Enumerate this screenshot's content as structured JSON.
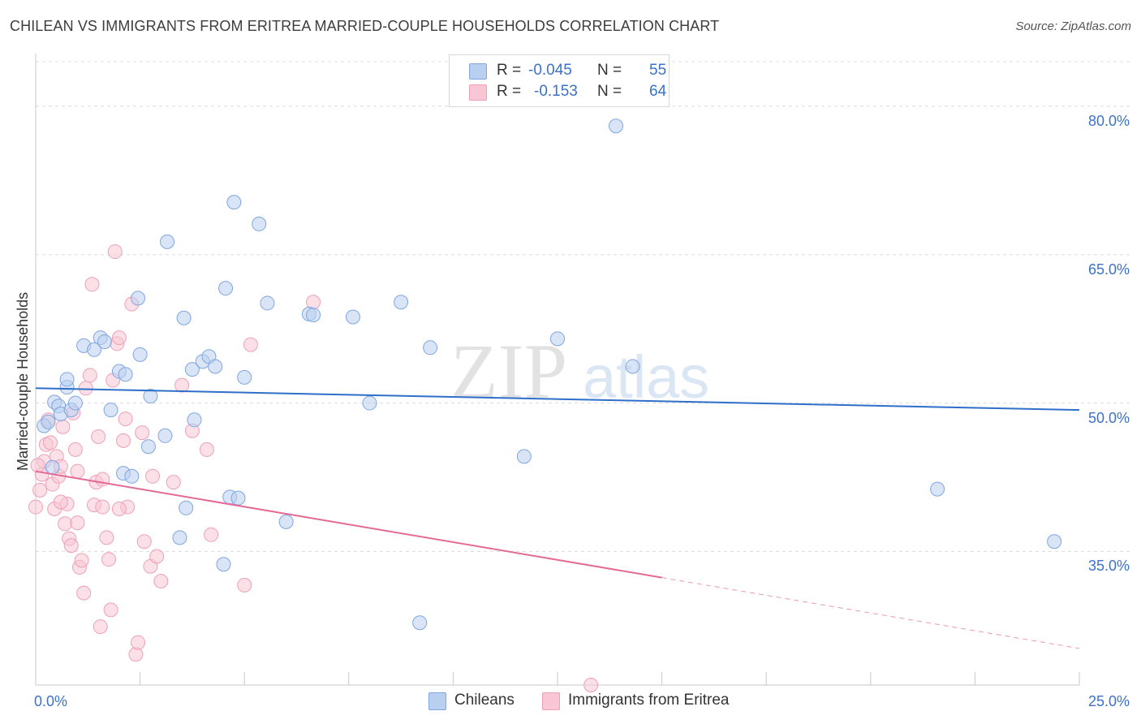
{
  "title": "CHILEAN VS IMMIGRANTS FROM ERITREA MARRIED-COUPLE HOUSEHOLDS CORRELATION CHART",
  "source": "Source: ZipAtlas.com",
  "legend_top": {
    "rows": [
      {
        "r_label": "R =",
        "r_value": "-0.045",
        "n_label": "N =",
        "n_value": "55"
      },
      {
        "r_label": "R =",
        "r_value": "-0.153",
        "n_label": "N =",
        "n_value": "64"
      }
    ]
  },
  "colors": {
    "series1_fill": "#b9cff0",
    "series1_stroke": "#7fa6e0",
    "series1_line": "#2e6fc9",
    "series2_fill": "#f8c6d4",
    "series2_stroke": "#eea0b8",
    "series2_line": "#e46a96",
    "axis_text": "#3b72c8"
  },
  "chart_data": {
    "type": "scatter",
    "title": "CHILEAN VS IMMIGRANTS FROM ERITREA MARRIED-COUPLE HOUSEHOLDS CORRELATION CHART",
    "xlabel": "",
    "ylabel": "Married-couple Households",
    "xlim": [
      0,
      25
    ],
    "ylim": [
      21.5,
      84.5
    ],
    "x_tick_labels": [
      "0.0%",
      "25.0%"
    ],
    "y_ticks": [
      35,
      50,
      65,
      80
    ],
    "y_tick_labels": [
      "35.0%",
      "50.0%",
      "65.0%",
      "80.0%"
    ],
    "grid": true,
    "watermark": "ZIPatlas",
    "series": [
      {
        "name": "Chileans",
        "R": -0.045,
        "N": 55,
        "trend": {
          "x0": 0,
          "y0": 51.5,
          "x1": 25,
          "y1": 49.3,
          "dashed_from": null
        },
        "points": [
          [
            0.2,
            47.7
          ],
          [
            0.3,
            48.1
          ],
          [
            0.45,
            50.1
          ],
          [
            0.55,
            49.7
          ],
          [
            0.6,
            48.9
          ],
          [
            0.75,
            51.6
          ],
          [
            0.85,
            49.3
          ],
          [
            0.75,
            52.4
          ],
          [
            0.95,
            50.0
          ],
          [
            1.15,
            55.8
          ],
          [
            1.4,
            55.4
          ],
          [
            1.55,
            56.6
          ],
          [
            1.65,
            56.2
          ],
          [
            1.8,
            49.3
          ],
          [
            2.0,
            53.2
          ],
          [
            2.15,
            52.9
          ],
          [
            2.5,
            54.9
          ],
          [
            2.45,
            60.6
          ],
          [
            2.7,
            45.6
          ],
          [
            2.75,
            50.7
          ],
          [
            3.1,
            46.7
          ],
          [
            3.15,
            66.3
          ],
          [
            3.55,
            58.6
          ],
          [
            3.75,
            53.4
          ],
          [
            3.6,
            39.4
          ],
          [
            3.45,
            36.4
          ],
          [
            3.8,
            48.3
          ],
          [
            4.0,
            54.2
          ],
          [
            4.15,
            54.7
          ],
          [
            4.3,
            53.7
          ],
          [
            4.55,
            61.6
          ],
          [
            4.65,
            40.5
          ],
          [
            4.75,
            70.3
          ],
          [
            4.85,
            40.4
          ],
          [
            5.0,
            52.6
          ],
          [
            5.35,
            68.1
          ],
          [
            5.55,
            60.1
          ],
          [
            6.0,
            38.0
          ],
          [
            6.55,
            59.0
          ],
          [
            6.65,
            58.9
          ],
          [
            7.6,
            58.7
          ],
          [
            8.0,
            50.0
          ],
          [
            8.75,
            60.2
          ],
          [
            9.45,
            55.6
          ],
          [
            11.7,
            44.6
          ],
          [
            12.5,
            56.5
          ],
          [
            14.3,
            53.7
          ],
          [
            21.6,
            41.3
          ],
          [
            24.4,
            36.0
          ],
          [
            2.1,
            42.9
          ],
          [
            2.3,
            42.6
          ],
          [
            4.5,
            33.7
          ],
          [
            9.2,
            27.8
          ],
          [
            13.9,
            78.0
          ],
          [
            0.4,
            43.5
          ]
        ]
      },
      {
        "name": "Immigrants from Eritrea",
        "R": -0.153,
        "N": 64,
        "trend": {
          "x0": 0,
          "y0": 43.1,
          "x1": 25,
          "y1": 25.2,
          "dashed_from": 15
        },
        "points": [
          [
            0.0,
            39.5
          ],
          [
            0.1,
            41.2
          ],
          [
            0.15,
            42.8
          ],
          [
            0.2,
            44.1
          ],
          [
            0.25,
            45.8
          ],
          [
            0.3,
            48.3
          ],
          [
            0.35,
            46.0
          ],
          [
            0.4,
            41.8
          ],
          [
            0.45,
            39.3
          ],
          [
            0.5,
            44.6
          ],
          [
            0.55,
            42.6
          ],
          [
            0.6,
            43.6
          ],
          [
            0.65,
            47.6
          ],
          [
            0.7,
            37.8
          ],
          [
            0.75,
            39.8
          ],
          [
            0.8,
            36.3
          ],
          [
            0.85,
            35.6
          ],
          [
            0.9,
            49.0
          ],
          [
            0.95,
            45.3
          ],
          [
            1.0,
            43.1
          ],
          [
            1.05,
            33.4
          ],
          [
            1.1,
            34.1
          ],
          [
            1.15,
            30.8
          ],
          [
            1.2,
            51.5
          ],
          [
            1.3,
            52.8
          ],
          [
            1.35,
            62.0
          ],
          [
            1.4,
            39.7
          ],
          [
            1.45,
            42.0
          ],
          [
            1.5,
            46.6
          ],
          [
            1.55,
            27.4
          ],
          [
            1.6,
            39.5
          ],
          [
            1.7,
            36.4
          ],
          [
            1.75,
            34.2
          ],
          [
            1.8,
            29.1
          ],
          [
            1.85,
            52.3
          ],
          [
            1.9,
            65.3
          ],
          [
            1.95,
            56.0
          ],
          [
            2.0,
            56.6
          ],
          [
            2.1,
            46.2
          ],
          [
            2.15,
            48.4
          ],
          [
            2.2,
            39.5
          ],
          [
            2.3,
            60.0
          ],
          [
            2.4,
            24.6
          ],
          [
            2.45,
            25.8
          ],
          [
            2.55,
            47.0
          ],
          [
            2.6,
            36.0
          ],
          [
            2.75,
            33.5
          ],
          [
            2.8,
            42.6
          ],
          [
            2.9,
            34.5
          ],
          [
            3.0,
            32.0
          ],
          [
            3.3,
            42.0
          ],
          [
            3.5,
            51.8
          ],
          [
            3.75,
            47.2
          ],
          [
            4.1,
            45.3
          ],
          [
            4.2,
            36.7
          ],
          [
            5.0,
            31.6
          ],
          [
            5.15,
            55.9
          ],
          [
            6.65,
            60.2
          ],
          [
            13.3,
            21.5
          ],
          [
            0.05,
            43.7
          ],
          [
            0.6,
            40.0
          ],
          [
            1.0,
            37.9
          ],
          [
            1.6,
            42.3
          ],
          [
            2.0,
            39.3
          ]
        ]
      }
    ]
  },
  "bottom_legend": [
    "Chileans",
    "Immigrants from Eritrea"
  ],
  "x_axis": {
    "left_label": "0.0%",
    "right_label": "25.0%"
  },
  "y_axis_label": "Married-couple Households"
}
